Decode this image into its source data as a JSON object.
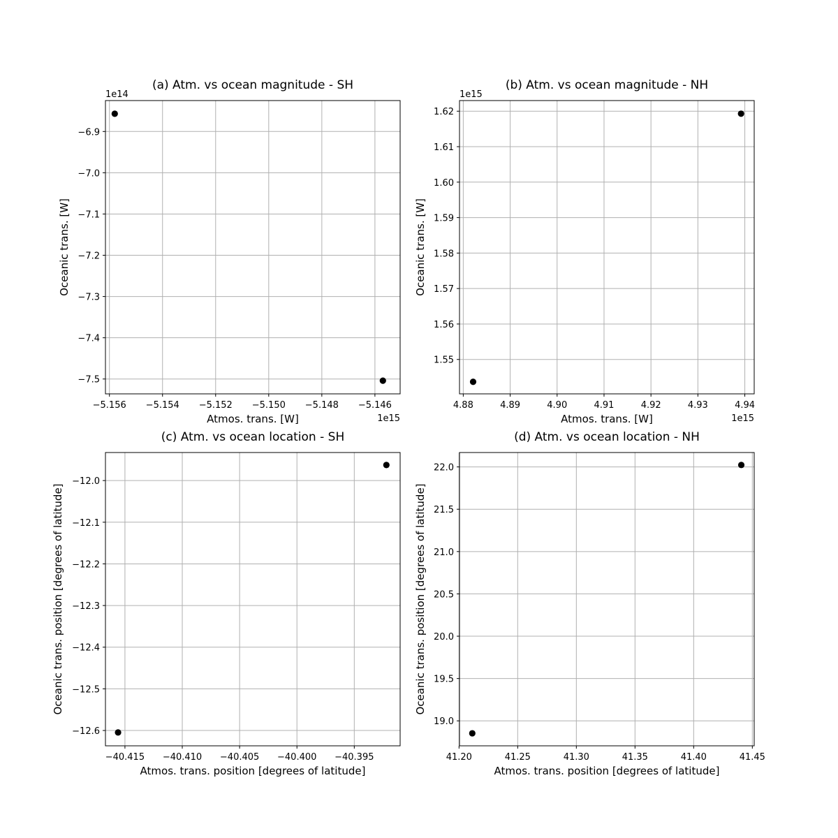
{
  "colors": {
    "marker": "#000000",
    "grid": "#b0b0b0",
    "frame": "#000000"
  },
  "chart_data": [
    {
      "type": "scatter",
      "title": "(a) Atm. vs ocean magnitude - SH",
      "xlabel": "Atmos. trans. [W]",
      "ylabel": "Oceanic trans. [W]",
      "x_offset_text": "1e15",
      "y_offset_text": "1e14",
      "grid": true,
      "xlim": [
        -5.15615,
        -5.14505
      ],
      "ylim": [
        -7.536,
        -6.825
      ],
      "xticks": [
        -5.156,
        -5.154,
        -5.152,
        -5.15,
        -5.148,
        -5.146
      ],
      "xtick_labels": [
        "−5.156",
        "−5.154",
        "−5.152",
        "−5.150",
        "−5.148",
        "−5.146"
      ],
      "yticks": [
        -7.5,
        -7.4,
        -7.3,
        -7.2,
        -7.1,
        -7.0,
        -6.9
      ],
      "ytick_labels": [
        "−7.5",
        "−7.4",
        "−7.3",
        "−7.2",
        "−7.1",
        "−7.0",
        "−6.9"
      ],
      "points": [
        {
          "x": -5.1558,
          "y": -6.857
        },
        {
          "x": -5.1457,
          "y": -7.504
        }
      ]
    },
    {
      "type": "scatter",
      "title": "(b) Atm. vs ocean magnitude - NH",
      "xlabel": "Atmos. trans. [W]",
      "ylabel": "Oceanic trans. [W]",
      "x_offset_text": "1e15",
      "y_offset_text": "1e15",
      "grid": true,
      "xlim": [
        4.8792,
        4.942
      ],
      "ylim": [
        1.5403,
        1.623
      ],
      "xticks": [
        4.88,
        4.89,
        4.9,
        4.91,
        4.92,
        4.93,
        4.94
      ],
      "xtick_labels": [
        "4.88",
        "4.89",
        "4.90",
        "4.91",
        "4.92",
        "4.93",
        "4.94"
      ],
      "yticks": [
        1.55,
        1.56,
        1.57,
        1.58,
        1.59,
        1.6,
        1.61,
        1.62
      ],
      "ytick_labels": [
        "1.55",
        "1.56",
        "1.57",
        "1.58",
        "1.59",
        "1.60",
        "1.61",
        "1.62"
      ],
      "points": [
        {
          "x": 4.8821,
          "y": 1.5437
        },
        {
          "x": 4.9392,
          "y": 1.6193
        }
      ]
    },
    {
      "type": "scatter",
      "title": "(c) Atm. vs ocean location - SH",
      "xlabel": "Atmos. trans. position [degrees of latitude]",
      "ylabel": "Oceanic trans. position [degrees of latitude]",
      "x_offset_text": "",
      "y_offset_text": "",
      "grid": true,
      "xlim": [
        -40.4167,
        -40.391
      ],
      "ylim": [
        -12.6368,
        -11.9327
      ],
      "xticks": [
        -40.415,
        -40.41,
        -40.405,
        -40.4,
        -40.395
      ],
      "xtick_labels": [
        "−40.415",
        "−40.410",
        "−40.405",
        "−40.400",
        "−40.395"
      ],
      "yticks": [
        -12.6,
        -12.5,
        -12.4,
        -12.3,
        -12.2,
        -12.1,
        -12.0
      ],
      "ytick_labels": [
        "−12.6",
        "−12.5",
        "−12.4",
        "−12.3",
        "−12.2",
        "−12.1",
        "−12.0"
      ],
      "points": [
        {
          "x": -40.4156,
          "y": -12.6048
        },
        {
          "x": -40.3922,
          "y": -11.9627
        }
      ]
    },
    {
      "type": "scatter",
      "title": "(d) Atm. vs ocean location - NH",
      "xlabel": "Atmos. trans. position [degrees of latitude]",
      "ylabel": "Oceanic trans. position [degrees of latitude]",
      "x_offset_text": "",
      "y_offset_text": "",
      "grid": true,
      "xlim": [
        41.2004,
        41.4516
      ],
      "ylim": [
        18.705,
        22.17
      ],
      "xticks": [
        41.2,
        41.25,
        41.3,
        41.35,
        41.4,
        41.45
      ],
      "xtick_labels": [
        "41.20",
        "41.25",
        "41.30",
        "41.35",
        "41.40",
        "41.45"
      ],
      "yticks": [
        19.0,
        19.5,
        20.0,
        20.5,
        21.0,
        21.5,
        22.0
      ],
      "ytick_labels": [
        "19.0",
        "19.5",
        "20.0",
        "20.5",
        "21.0",
        "21.5",
        "22.0"
      ],
      "points": [
        {
          "x": 41.2113,
          "y": 18.853
        },
        {
          "x": 41.4406,
          "y": 22.023
        }
      ]
    }
  ]
}
